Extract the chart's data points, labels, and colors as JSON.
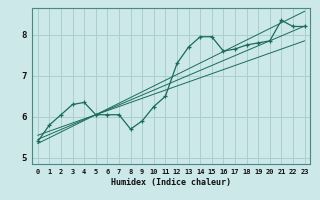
{
  "xlabel": "Humidex (Indice chaleur)",
  "ylabel": "",
  "background_color": "#cce8e8",
  "grid_color": "#aacfcf",
  "line_color": "#1a6b5a",
  "xlim": [
    -0.5,
    23.5
  ],
  "ylim": [
    4.85,
    8.65
  ],
  "xticks": [
    0,
    1,
    2,
    3,
    4,
    5,
    6,
    7,
    8,
    9,
    10,
    11,
    12,
    13,
    14,
    15,
    16,
    17,
    18,
    19,
    20,
    21,
    22,
    23
  ],
  "yticks": [
    5,
    6,
    7,
    8
  ],
  "curve_data": [
    5.4,
    5.8,
    6.05,
    6.3,
    6.35,
    6.05,
    6.05,
    6.05,
    5.7,
    5.9,
    6.25,
    6.5,
    7.3,
    7.7,
    7.95,
    7.95,
    7.6,
    7.65,
    7.75,
    7.8,
    7.85,
    8.35,
    8.2,
    8.2
  ],
  "linear_lines": [
    [
      5.55,
      5.65,
      5.75,
      5.85,
      5.95,
      6.05,
      6.15,
      6.25,
      6.35,
      6.45,
      6.55,
      6.65,
      6.75,
      6.85,
      6.95,
      7.05,
      7.15,
      7.25,
      7.35,
      7.45,
      7.55,
      7.65,
      7.75,
      7.85
    ],
    [
      5.45,
      5.57,
      5.69,
      5.81,
      5.93,
      6.05,
      6.17,
      6.29,
      6.41,
      6.53,
      6.65,
      6.77,
      6.89,
      7.01,
      7.13,
      7.25,
      7.37,
      7.49,
      7.61,
      7.73,
      7.85,
      7.97,
      8.09,
      8.21
    ],
    [
      5.35,
      5.49,
      5.63,
      5.77,
      5.91,
      6.05,
      6.19,
      6.33,
      6.47,
      6.61,
      6.75,
      6.89,
      7.03,
      7.17,
      7.31,
      7.45,
      7.59,
      7.73,
      7.87,
      8.01,
      8.15,
      8.29,
      8.43,
      8.57
    ]
  ]
}
